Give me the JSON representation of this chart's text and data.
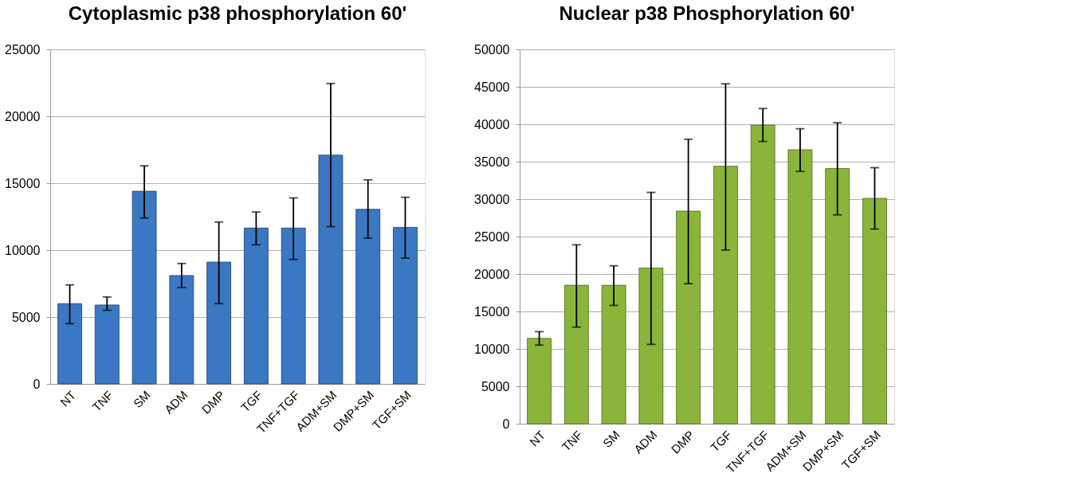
{
  "chart_data": [
    {
      "type": "bar",
      "title": "Cytoplasmic p38 phosphorylation  60'",
      "categories": [
        "NT",
        "TNF",
        "SM",
        "ADM",
        "DMP",
        "TGF",
        "TNF+TGF",
        "ADM+SM",
        "DMP+SM",
        "TGF+SM"
      ],
      "series": [
        {
          "color": "#3a78c3",
          "values": [
            6000,
            5900,
            14400,
            8100,
            9100,
            11650,
            11650,
            17100,
            13050,
            11700
          ],
          "errors": [
            [
              4500,
              7400
            ],
            [
              5500,
              6500
            ],
            [
              12400,
              16300
            ],
            [
              7200,
              9000
            ],
            [
              6000,
              12100
            ],
            [
              10400,
              12850
            ],
            [
              9300,
              13900
            ],
            [
              11750,
              22450
            ],
            [
              10900,
              15250
            ],
            [
              9400,
              13950
            ]
          ]
        }
      ],
      "ylim": [
        0,
        25000
      ],
      "yticks": [
        0,
        5000,
        10000,
        15000,
        20000,
        25000
      ],
      "grid": "y"
    },
    {
      "type": "bar",
      "title": "Nuclear p38 Phosphorylation  60'",
      "categories": [
        "NT",
        "TNF",
        "SM",
        "ADM",
        "DMP",
        "TGF",
        "TNF+TGF",
        "ADM+SM",
        "DMP+SM",
        "TGF+SM"
      ],
      "series": [
        {
          "color": "#8ab53a",
          "values": [
            11400,
            18500,
            18500,
            20800,
            28400,
            34400,
            39900,
            36600,
            34100,
            30100
          ],
          "errors": [
            [
              10500,
              12300
            ],
            [
              12900,
              23900
            ],
            [
              15800,
              21100
            ],
            [
              10600,
              30900
            ],
            [
              18700,
              38000
            ],
            [
              23200,
              45400
            ],
            [
              37700,
              42100
            ],
            [
              33700,
              39400
            ],
            [
              27900,
              40200
            ],
            [
              26000,
              34200
            ]
          ]
        }
      ],
      "ylim": [
        0,
        50000
      ],
      "yticks": [
        0,
        5000,
        10000,
        15000,
        20000,
        25000,
        30000,
        35000,
        40000,
        45000,
        50000
      ],
      "grid": "y"
    }
  ]
}
